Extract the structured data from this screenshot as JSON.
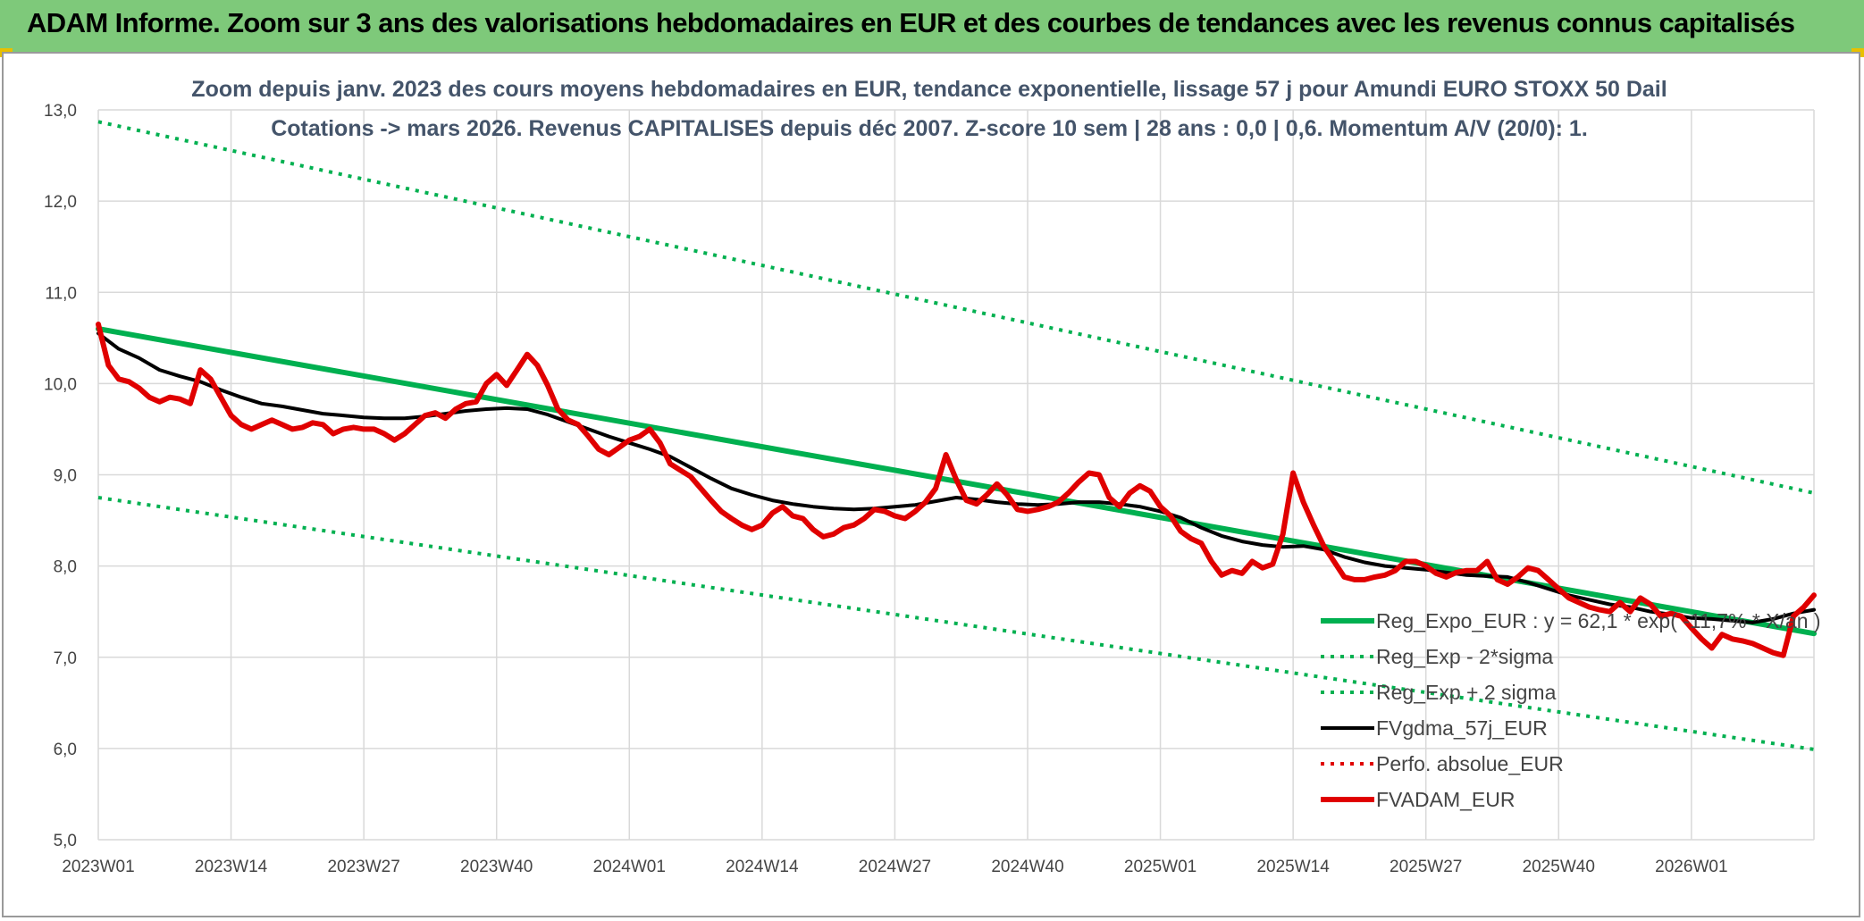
{
  "header": {
    "title": "ADAM Informe. Zoom sur 3 ans des valorisations hebdomadaires en EUR et des courbes de tendances avec les revenus connus capitalisés"
  },
  "colors": {
    "banner": "#7ec97a",
    "trend": "#00b050",
    "dotted_band": "#00b050",
    "fvgdma": "#000000",
    "fvadam": "#e00000",
    "perfo": "#e00000",
    "grid": "#d9d9d9"
  },
  "chart_data": {
    "type": "line",
    "title_lines": [
      "Zoom depuis janv. 2023 des cours moyens hebdomadaires en EUR, tendance exponentielle, lissage 57 j pour Amundi EURO STOXX 50 Dail",
      "Cotations -> mars 2026. Revenus CAPITALISES depuis déc 2007. Z-score 10 sem | 28 ans : 0,0 | 0,6. Momentum A/V (20/0): 1."
    ],
    "ylim": [
      5.0,
      13.0
    ],
    "yticks": [
      "5,0",
      "6,0",
      "7,0",
      "8,0",
      "9,0",
      "10,0",
      "11,0",
      "12,0",
      "13,0"
    ],
    "x_range_weeks": [
      0,
      168
    ],
    "xticks": [
      {
        "label": "2023W01",
        "week": 0
      },
      {
        "label": "2023W14",
        "week": 13
      },
      {
        "label": "2023W27",
        "week": 26
      },
      {
        "label": "2023W40",
        "week": 39
      },
      {
        "label": "2024W01",
        "week": 52
      },
      {
        "label": "2024W14",
        "week": 65
      },
      {
        "label": "2024W27",
        "week": 78
      },
      {
        "label": "2024W40",
        "week": 91
      },
      {
        "label": "2025W01",
        "week": 104
      },
      {
        "label": "2025W14",
        "week": 117
      },
      {
        "label": "2025W27",
        "week": 130
      },
      {
        "label": "2025W40",
        "week": 143
      },
      {
        "label": "2026W01",
        "week": 156
      }
    ],
    "series": [
      {
        "name": "Reg_Expo_EUR : y = 62,1 * exp( -11,7% * X/an )",
        "style": "thick",
        "color": "#00b050",
        "points": [
          [
            0,
            10.6
          ],
          [
            168,
            7.26
          ]
        ]
      },
      {
        "name": "Reg_Exp - 2*sigma",
        "style": "dotted",
        "color": "#00b050",
        "points": [
          [
            0,
            8.75
          ],
          [
            168,
            5.99
          ]
        ]
      },
      {
        "name": "Reg_Exp + 2 sigma",
        "style": "dotted",
        "color": "#00b050",
        "points": [
          [
            0,
            12.87
          ],
          [
            168,
            8.8
          ]
        ]
      },
      {
        "name": "FVgdma_57j_EUR",
        "style": "solid",
        "color": "#000000",
        "points": [
          [
            0,
            10.55
          ],
          [
            2,
            10.38
          ],
          [
            4,
            10.28
          ],
          [
            6,
            10.15
          ],
          [
            8,
            10.08
          ],
          [
            10,
            10.02
          ],
          [
            12,
            9.93
          ],
          [
            14,
            9.85
          ],
          [
            16,
            9.78
          ],
          [
            18,
            9.75
          ],
          [
            20,
            9.71
          ],
          [
            22,
            9.67
          ],
          [
            24,
            9.65
          ],
          [
            26,
            9.63
          ],
          [
            28,
            9.62
          ],
          [
            30,
            9.62
          ],
          [
            32,
            9.64
          ],
          [
            34,
            9.67
          ],
          [
            36,
            9.7
          ],
          [
            38,
            9.72
          ],
          [
            40,
            9.73
          ],
          [
            42,
            9.72
          ],
          [
            44,
            9.66
          ],
          [
            46,
            9.58
          ],
          [
            48,
            9.5
          ],
          [
            50,
            9.42
          ],
          [
            52,
            9.35
          ],
          [
            54,
            9.28
          ],
          [
            56,
            9.2
          ],
          [
            58,
            9.08
          ],
          [
            60,
            8.96
          ],
          [
            62,
            8.85
          ],
          [
            64,
            8.78
          ],
          [
            66,
            8.72
          ],
          [
            68,
            8.68
          ],
          [
            70,
            8.65
          ],
          [
            72,
            8.63
          ],
          [
            74,
            8.62
          ],
          [
            76,
            8.63
          ],
          [
            78,
            8.65
          ],
          [
            80,
            8.67
          ],
          [
            82,
            8.71
          ],
          [
            84,
            8.75
          ],
          [
            86,
            8.73
          ],
          [
            88,
            8.7
          ],
          [
            90,
            8.68
          ],
          [
            92,
            8.67
          ],
          [
            94,
            8.68
          ],
          [
            96,
            8.7
          ],
          [
            98,
            8.7
          ],
          [
            100,
            8.68
          ],
          [
            102,
            8.65
          ],
          [
            104,
            8.6
          ],
          [
            106,
            8.53
          ],
          [
            108,
            8.42
          ],
          [
            110,
            8.33
          ],
          [
            112,
            8.27
          ],
          [
            114,
            8.23
          ],
          [
            116,
            8.21
          ],
          [
            118,
            8.22
          ],
          [
            120,
            8.18
          ],
          [
            122,
            8.1
          ],
          [
            124,
            8.04
          ],
          [
            126,
            8.0
          ],
          [
            128,
            7.98
          ],
          [
            130,
            7.96
          ],
          [
            132,
            7.93
          ],
          [
            134,
            7.9
          ],
          [
            136,
            7.89
          ],
          [
            138,
            7.88
          ],
          [
            140,
            7.82
          ],
          [
            142,
            7.75
          ],
          [
            144,
            7.68
          ],
          [
            146,
            7.63
          ],
          [
            148,
            7.58
          ],
          [
            150,
            7.55
          ],
          [
            152,
            7.5
          ],
          [
            154,
            7.47
          ],
          [
            156,
            7.43
          ],
          [
            158,
            7.42
          ],
          [
            160,
            7.4
          ],
          [
            162,
            7.38
          ],
          [
            164,
            7.42
          ],
          [
            166,
            7.48
          ],
          [
            168,
            7.52
          ]
        ]
      },
      {
        "name": "Perfo. absolue_EUR",
        "style": "dotted",
        "color": "#e00000",
        "points": []
      },
      {
        "name": "FVADAM_EUR",
        "style": "thick",
        "color": "#e00000",
        "points": [
          [
            0,
            10.65
          ],
          [
            1,
            10.2
          ],
          [
            2,
            10.05
          ],
          [
            3,
            10.02
          ],
          [
            4,
            9.95
          ],
          [
            5,
            9.85
          ],
          [
            6,
            9.8
          ],
          [
            7,
            9.85
          ],
          [
            8,
            9.83
          ],
          [
            9,
            9.78
          ],
          [
            10,
            10.15
          ],
          [
            11,
            10.05
          ],
          [
            12,
            9.85
          ],
          [
            13,
            9.65
          ],
          [
            14,
            9.55
          ],
          [
            15,
            9.5
          ],
          [
            16,
            9.55
          ],
          [
            17,
            9.6
          ],
          [
            18,
            9.55
          ],
          [
            19,
            9.5
          ],
          [
            20,
            9.52
          ],
          [
            21,
            9.57
          ],
          [
            22,
            9.55
          ],
          [
            23,
            9.45
          ],
          [
            24,
            9.5
          ],
          [
            25,
            9.52
          ],
          [
            26,
            9.5
          ],
          [
            27,
            9.5
          ],
          [
            28,
            9.45
          ],
          [
            29,
            9.38
          ],
          [
            30,
            9.45
          ],
          [
            31,
            9.55
          ],
          [
            32,
            9.65
          ],
          [
            33,
            9.68
          ],
          [
            34,
            9.62
          ],
          [
            35,
            9.72
          ],
          [
            36,
            9.78
          ],
          [
            37,
            9.8
          ],
          [
            38,
            10.0
          ],
          [
            39,
            10.1
          ],
          [
            40,
            9.98
          ],
          [
            41,
            10.15
          ],
          [
            42,
            10.32
          ],
          [
            43,
            10.2
          ],
          [
            44,
            9.98
          ],
          [
            45,
            9.72
          ],
          [
            46,
            9.6
          ],
          [
            47,
            9.55
          ],
          [
            48,
            9.42
          ],
          [
            49,
            9.28
          ],
          [
            50,
            9.22
          ],
          [
            51,
            9.3
          ],
          [
            52,
            9.38
          ],
          [
            53,
            9.42
          ],
          [
            54,
            9.5
          ],
          [
            55,
            9.35
          ],
          [
            56,
            9.12
          ],
          [
            57,
            9.05
          ],
          [
            58,
            8.98
          ],
          [
            59,
            8.85
          ],
          [
            60,
            8.72
          ],
          [
            61,
            8.6
          ],
          [
            62,
            8.52
          ],
          [
            63,
            8.45
          ],
          [
            64,
            8.4
          ],
          [
            65,
            8.45
          ],
          [
            66,
            8.58
          ],
          [
            67,
            8.65
          ],
          [
            68,
            8.55
          ],
          [
            69,
            8.52
          ],
          [
            70,
            8.4
          ],
          [
            71,
            8.32
          ],
          [
            72,
            8.35
          ],
          [
            73,
            8.42
          ],
          [
            74,
            8.45
          ],
          [
            75,
            8.52
          ],
          [
            76,
            8.62
          ],
          [
            77,
            8.6
          ],
          [
            78,
            8.55
          ],
          [
            79,
            8.52
          ],
          [
            80,
            8.6
          ],
          [
            81,
            8.7
          ],
          [
            82,
            8.85
          ],
          [
            83,
            9.22
          ],
          [
            84,
            8.95
          ],
          [
            85,
            8.72
          ],
          [
            86,
            8.68
          ],
          [
            87,
            8.78
          ],
          [
            88,
            8.9
          ],
          [
            89,
            8.78
          ],
          [
            90,
            8.62
          ],
          [
            91,
            8.6
          ],
          [
            92,
            8.62
          ],
          [
            93,
            8.65
          ],
          [
            94,
            8.7
          ],
          [
            95,
            8.8
          ],
          [
            96,
            8.92
          ],
          [
            97,
            9.02
          ],
          [
            98,
            9.0
          ],
          [
            99,
            8.75
          ],
          [
            100,
            8.65
          ],
          [
            101,
            8.8
          ],
          [
            102,
            8.88
          ],
          [
            103,
            8.82
          ],
          [
            104,
            8.65
          ],
          [
            105,
            8.55
          ],
          [
            106,
            8.38
          ],
          [
            107,
            8.3
          ],
          [
            108,
            8.25
          ],
          [
            109,
            8.05
          ],
          [
            110,
            7.9
          ],
          [
            111,
            7.95
          ],
          [
            112,
            7.92
          ],
          [
            113,
            8.05
          ],
          [
            114,
            7.98
          ],
          [
            115,
            8.02
          ],
          [
            116,
            8.35
          ],
          [
            117,
            9.02
          ],
          [
            118,
            8.7
          ],
          [
            119,
            8.45
          ],
          [
            120,
            8.22
          ],
          [
            121,
            8.05
          ],
          [
            122,
            7.88
          ],
          [
            123,
            7.85
          ],
          [
            124,
            7.85
          ],
          [
            125,
            7.88
          ],
          [
            126,
            7.9
          ],
          [
            127,
            7.95
          ],
          [
            128,
            8.05
          ],
          [
            129,
            8.05
          ],
          [
            130,
            8.0
          ],
          [
            131,
            7.92
          ],
          [
            132,
            7.88
          ],
          [
            133,
            7.93
          ],
          [
            134,
            7.95
          ],
          [
            135,
            7.95
          ],
          [
            136,
            8.05
          ],
          [
            137,
            7.85
          ],
          [
            138,
            7.8
          ],
          [
            139,
            7.88
          ],
          [
            140,
            7.98
          ],
          [
            141,
            7.95
          ],
          [
            142,
            7.85
          ],
          [
            143,
            7.75
          ],
          [
            144,
            7.65
          ],
          [
            145,
            7.6
          ],
          [
            146,
            7.55
          ],
          [
            147,
            7.52
          ],
          [
            148,
            7.5
          ],
          [
            149,
            7.6
          ],
          [
            150,
            7.5
          ],
          [
            151,
            7.65
          ],
          [
            152,
            7.58
          ],
          [
            153,
            7.45
          ],
          [
            154,
            7.48
          ],
          [
            155,
            7.45
          ],
          [
            156,
            7.32
          ],
          [
            157,
            7.2
          ],
          [
            158,
            7.1
          ],
          [
            159,
            7.25
          ],
          [
            160,
            7.2
          ],
          [
            161,
            7.18
          ],
          [
            162,
            7.15
          ],
          [
            163,
            7.1
          ],
          [
            164,
            7.05
          ],
          [
            165,
            7.02
          ],
          [
            166,
            7.45
          ],
          [
            167,
            7.55
          ],
          [
            168,
            7.68
          ]
        ]
      }
    ],
    "legend_position": "bottom-right",
    "grid": true
  }
}
